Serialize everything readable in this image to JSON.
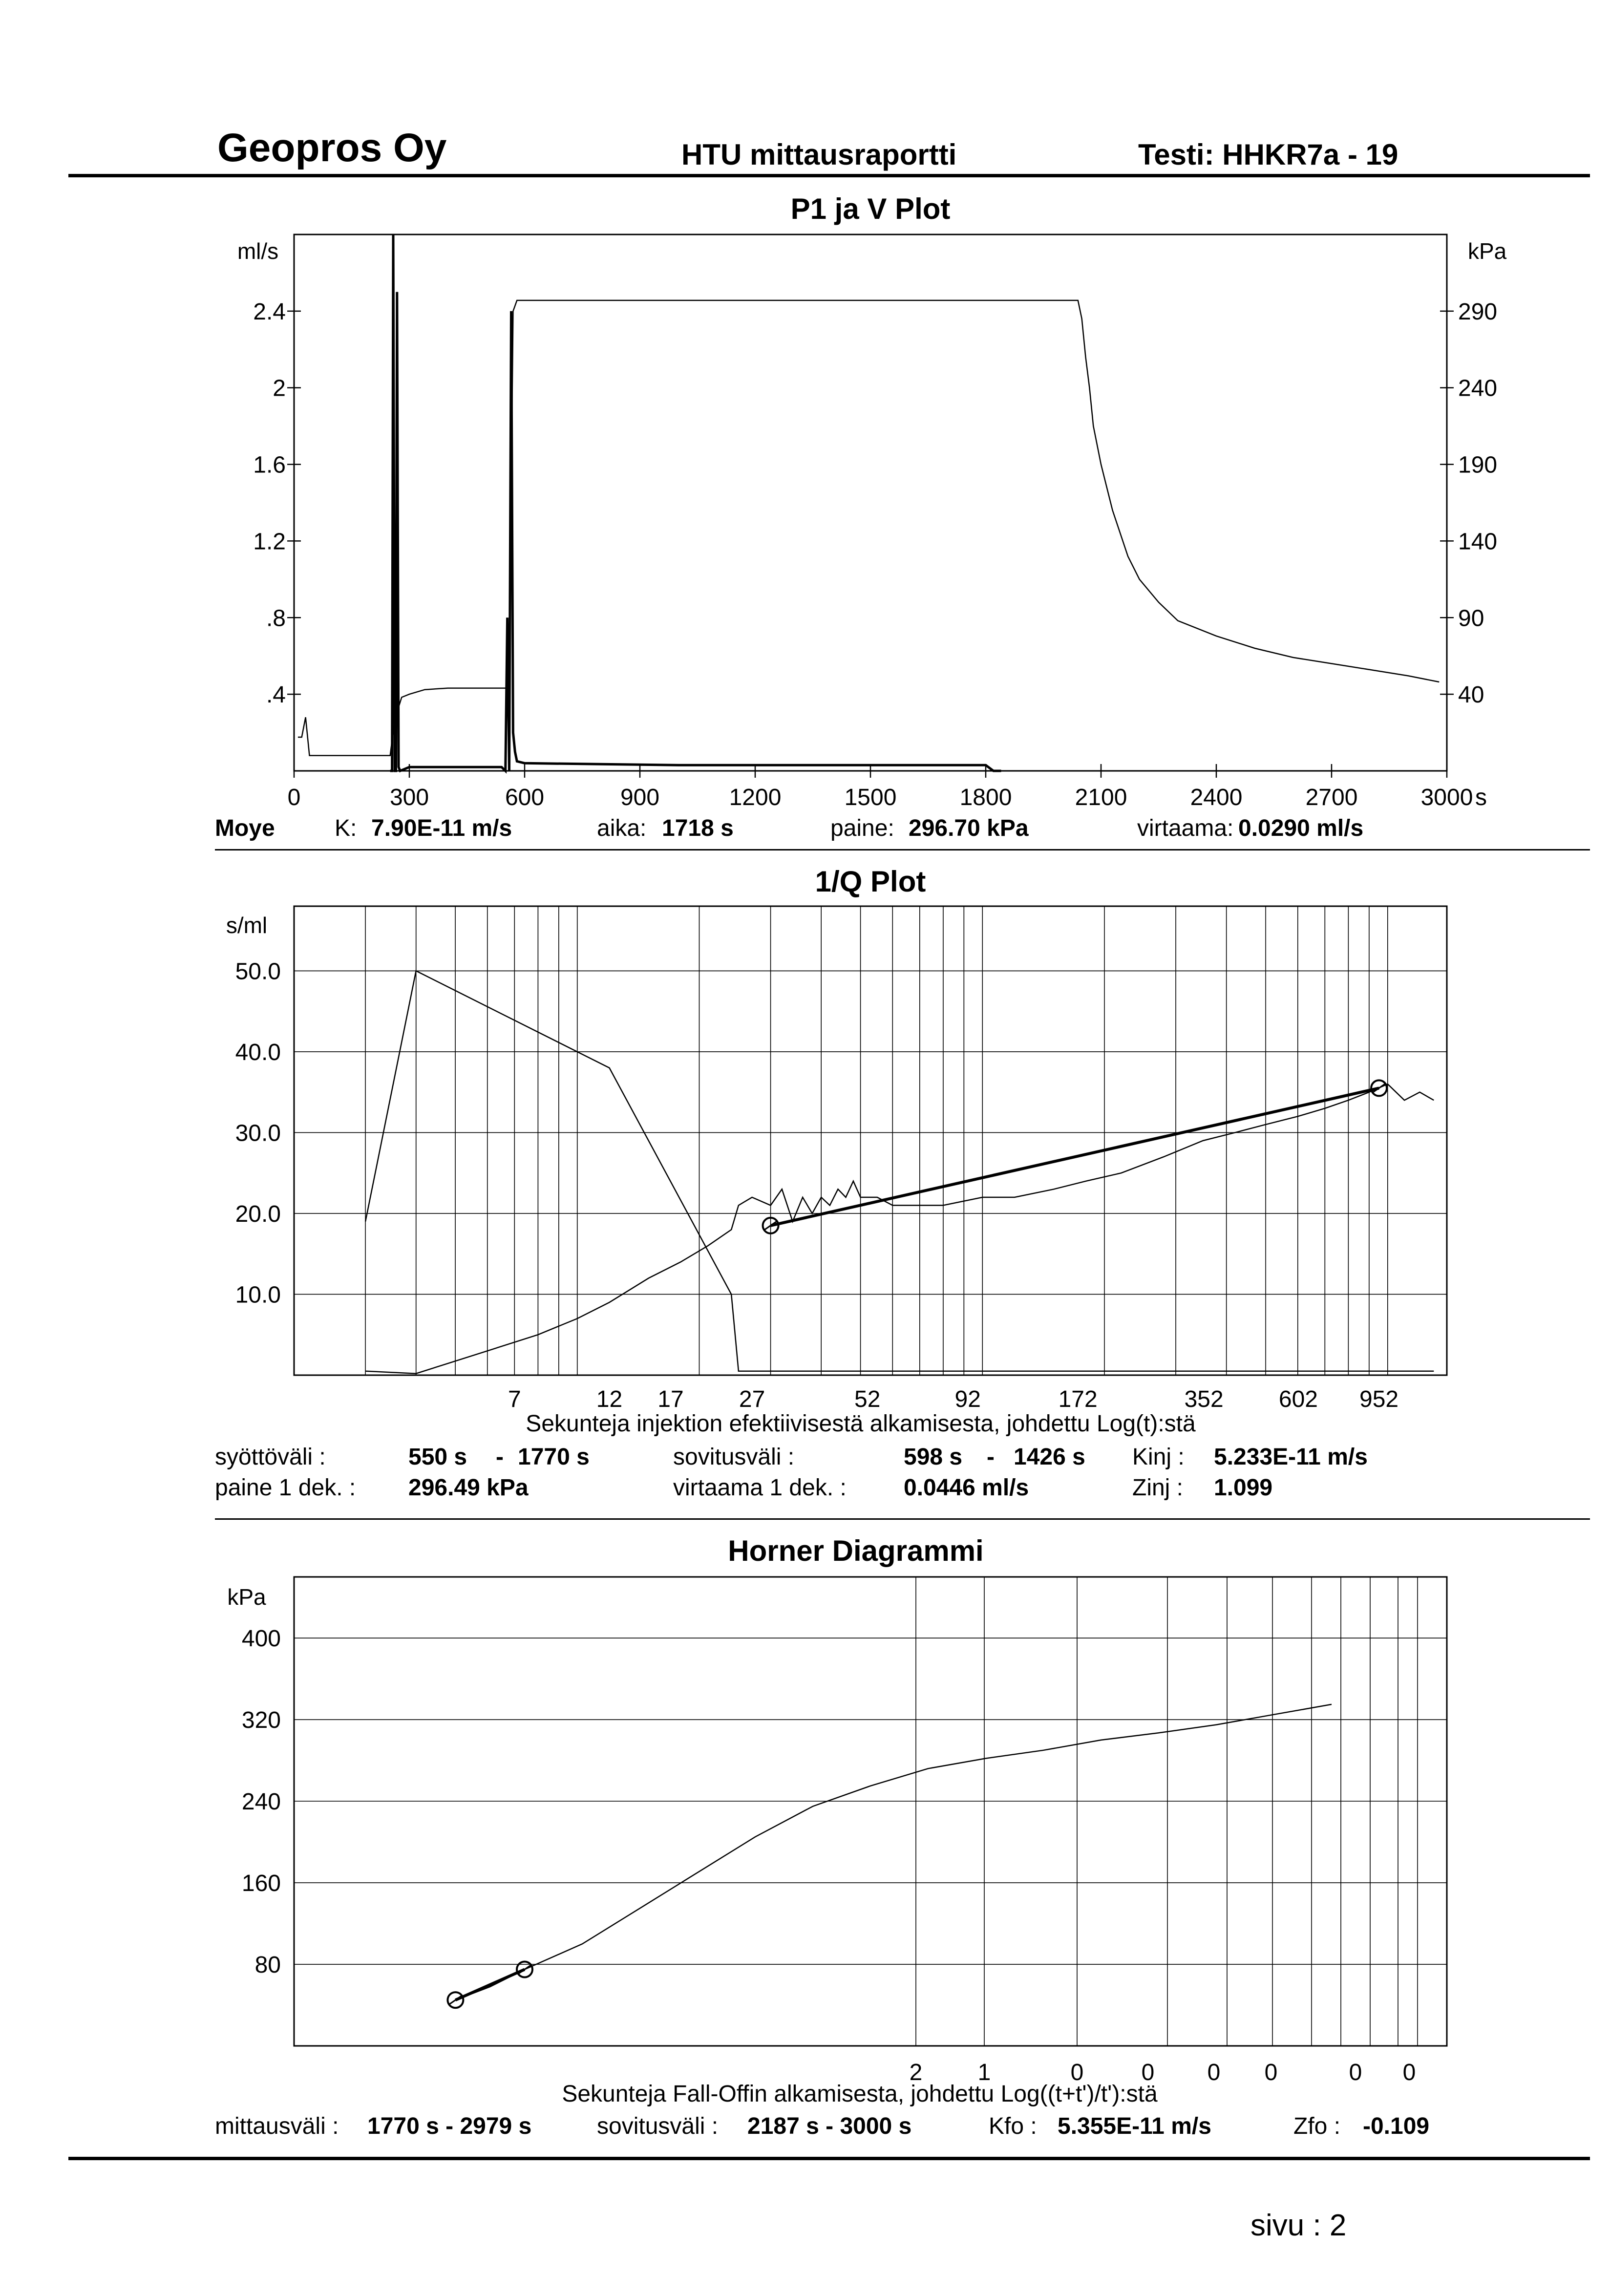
{
  "header": {
    "company": "Geopros Oy",
    "report": "HTU mittausraportti",
    "test": "Testi: HHKR7a - 19"
  },
  "info1": {
    "station": "Moye",
    "k_label": "K:",
    "k_value": "7.90E-11 m/s",
    "aika_label": "aika:",
    "aika_value": "1718 s",
    "paine_label": "paine:",
    "paine_value": "296.70 kPa",
    "virtaama_label": "virtaama:",
    "virtaama_value": "0.0290 ml/s"
  },
  "info2": {
    "syottovali_label": "syöttöväli :",
    "syottovali_from": "550 s",
    "syottovali_sep": "-",
    "syottovali_to": "1770 s",
    "paine_label": "paine 1 dek. :",
    "paine_value": "296.49 kPa",
    "sovitusvali_label": "sovitusväli :",
    "sovitusvali_from": "598 s",
    "sovitusvali_sep": "-",
    "sovitusvali_to": "1426 s",
    "virtaama_label": "virtaama 1 dek. :",
    "virtaama_value": "0.0446 ml/s",
    "kinj_label": "Kinj :",
    "kinj_value": "5.233E-11 m/s",
    "zinj_label": "Zinj :",
    "zinj_value": "1.099"
  },
  "info3": {
    "mittausvali_label": "mittausväli :",
    "mittausvali_value": "1770 s - 2979 s",
    "sovitusvali_label": "sovitusväli :",
    "sovitusvali_value": "2187 s - 3000 s",
    "kfo_label": "Kfo :",
    "kfo_value": "5.355E-11 m/s",
    "zfo_label": "Zfo :",
    "zfo_value": "-0.109"
  },
  "footer": {
    "page": "sivu : 2"
  },
  "colors": {
    "ink": "#000000",
    "paper": "#ffffff"
  },
  "chart_data": [
    {
      "type": "line",
      "title": "P1 ja V Plot",
      "ylabel_left": "ml/s",
      "ylabel_right": "kPa",
      "xunit": "s",
      "xlim": [
        0,
        3000
      ],
      "ylim_left": [
        0,
        2.8
      ],
      "ylim_right": [
        -10,
        340
      ],
      "x_ticks": [
        "0",
        "300",
        "600",
        "900",
        "1200",
        "1500",
        "1800",
        "2100",
        "2400",
        "2700",
        "3000"
      ],
      "y_ticks_left": [
        ".4",
        ".8",
        "1.2",
        "1.6",
        "2",
        "2.4"
      ],
      "y_ticks_right": [
        "40",
        "90",
        "140",
        "190",
        "240",
        "290"
      ],
      "grid": false,
      "series": [
        {
          "axis": "right",
          "x": [
            10,
            20,
            30,
            40,
            250,
            260,
            270,
            280,
            300,
            340,
            400,
            500,
            560,
            570,
            580,
            2040,
            2050,
            2060,
            2070,
            2080,
            2100,
            2130,
            2170,
            2200,
            2250,
            2300,
            2400,
            2500,
            2600,
            2700,
            2800,
            2900,
            2980
          ],
          "y": [
            12,
            12,
            25,
            0,
            0,
            20,
            30,
            38,
            40,
            43,
            44,
            44,
            44,
            290,
            297,
            297,
            285,
            260,
            240,
            215,
            190,
            160,
            130,
            115,
            100,
            88,
            78,
            70,
            64,
            60,
            56,
            52,
            48
          ]
        },
        {
          "axis": "left",
          "x": [
            250,
            255,
            258,
            262,
            265,
            268,
            272,
            276,
            300,
            350,
            400,
            450,
            500,
            520,
            540,
            550,
            555,
            560,
            565,
            570,
            575,
            580,
            600,
            800,
            1000,
            1200,
            1400,
            1600,
            1800,
            1820,
            1840
          ],
          "y": [
            0,
            0,
            2.8,
            0,
            0,
            2.5,
            0.02,
            0,
            0.02,
            0.02,
            0.02,
            0.02,
            0.02,
            0.02,
            0.02,
            0,
            0.8,
            0,
            2.4,
            0.2,
            0.1,
            0.05,
            0.04,
            0.035,
            0.03,
            0.03,
            0.03,
            0.03,
            0.03,
            0,
            0
          ]
        }
      ]
    },
    {
      "type": "line",
      "title": "1/Q Plot",
      "ylabel": "s/ml",
      "xlabel": "Sekunteja injektion efektiivisestä alkamisesta, johdettu Log(t):stä",
      "xscale": "log",
      "xlim": [
        2,
        1400
      ],
      "ylim": [
        0,
        58
      ],
      "x_ticks": [
        "7",
        "12",
        "17",
        "27",
        "52",
        "92",
        "172",
        "352",
        "602",
        "952"
      ],
      "y_ticks": [
        "10.0",
        "20.0",
        "30.0",
        "40.0",
        "50.0"
      ],
      "grid": true,
      "series": [
        {
          "x": [
            3,
            4,
            12,
            24,
            25,
            26,
            40,
            60,
            80,
            100,
            130,
            180,
            250,
            400,
            600,
            800,
            1000,
            1100,
            1200,
            1300
          ],
          "y": [
            19,
            50,
            38,
            10,
            0.5,
            0.5,
            0.5,
            0.5,
            0.5,
            0.5,
            0.5,
            0.5,
            0.5,
            0.5,
            0.5,
            0.5,
            0.5,
            0.5,
            0.5,
            0.5
          ]
        },
        {
          "x": [
            3,
            4,
            6,
            8,
            10,
            12,
            15,
            18,
            21,
            24,
            25,
            27,
            30,
            32,
            34,
            36,
            38,
            40,
            42,
            44,
            46,
            48,
            50,
            55,
            60,
            70,
            80,
            100,
            120,
            150,
            180,
            220,
            280,
            350,
            420,
            500,
            600,
            700,
            800,
            900,
            1000,
            1100,
            1200,
            1300
          ],
          "y": [
            0.5,
            0.2,
            3,
            5,
            7,
            9,
            12,
            14,
            16,
            18,
            21,
            22,
            21,
            23,
            19,
            22,
            20,
            22,
            21,
            23,
            22,
            24,
            22,
            22,
            21,
            21,
            21,
            22,
            22,
            23,
            24,
            25,
            27,
            29,
            30,
            31,
            32,
            33,
            34,
            35,
            36,
            34,
            35,
            34
          ]
        },
        {
          "x": [
            30,
            952
          ],
          "y": [
            18.5,
            35.5
          ]
        }
      ]
    },
    {
      "type": "line",
      "title": "Horner Diagrammi",
      "ylabel": "kPa",
      "xlabel": "Sekunteja Fall-Offin alkamisesta, johdettu Log((t+t')/t'):stä",
      "ylim": [
        0,
        460
      ],
      "x_ticks": [
        "2",
        "1",
        "0",
        "0",
        "0",
        "0",
        "0",
        "0"
      ],
      "y_ticks": [
        "80",
        "160",
        "240",
        "320",
        "400"
      ],
      "grid": true,
      "series": [
        {
          "x": [
            0.14,
            0.17,
            0.2,
            0.25,
            0.3,
            0.35,
            0.4,
            0.45,
            0.5,
            0.55,
            0.6,
            0.65,
            0.7,
            0.75,
            0.8,
            0.85,
            0.9
          ],
          "y": [
            45,
            58,
            75,
            100,
            135,
            170,
            205,
            235,
            255,
            272,
            282,
            290,
            300,
            307,
            315,
            325,
            335
          ]
        },
        {
          "x": [
            0.14,
            0.2
          ],
          "y": [
            45,
            75
          ]
        }
      ]
    }
  ]
}
